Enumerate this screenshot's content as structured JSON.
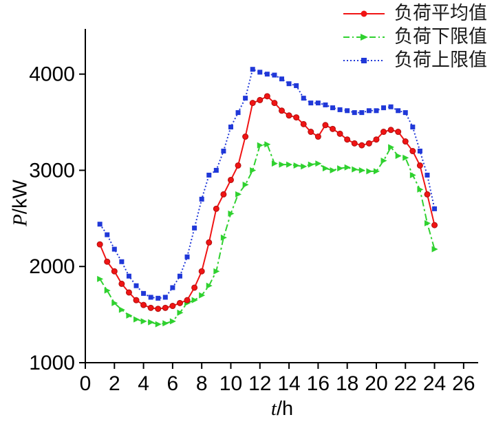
{
  "axis_labels": {
    "y_var": "P",
    "y_unit": "/kW",
    "x_var": "t",
    "x_unit": "/h"
  },
  "chart_data": {
    "type": "line",
    "title": "",
    "xlabel": "t/h",
    "ylabel": "P/kW",
    "xlim": [
      0,
      27
    ],
    "ylim": [
      1000,
      4470
    ],
    "xticks": [
      0,
      2,
      4,
      6,
      8,
      10,
      12,
      14,
      16,
      18,
      20,
      22,
      24,
      26
    ],
    "yticks": [
      1000,
      2000,
      3000,
      4000
    ],
    "grid": false,
    "legend_position": "top-right",
    "x": [
      1,
      1.5,
      2,
      2.5,
      3,
      3.5,
      4,
      4.5,
      5,
      5.5,
      6,
      6.5,
      7,
      7.5,
      8,
      8.5,
      9,
      9.5,
      10,
      10.5,
      11,
      11.5,
      12,
      12.5,
      13,
      13.5,
      14,
      14.5,
      15,
      15.5,
      16,
      16.5,
      17,
      17.5,
      18,
      18.5,
      19,
      19.5,
      20,
      20.5,
      21,
      21.5,
      22,
      22.5,
      23,
      23.5,
      24
    ],
    "series": [
      {
        "name": "负荷平均值",
        "color": "#f01414",
        "line_style": "solid",
        "marker": "circle",
        "values": [
          2230,
          2050,
          1950,
          1820,
          1730,
          1650,
          1600,
          1570,
          1560,
          1570,
          1590,
          1620,
          1650,
          1780,
          1950,
          2250,
          2600,
          2750,
          2900,
          3050,
          3350,
          3700,
          3730,
          3770,
          3700,
          3620,
          3570,
          3550,
          3480,
          3400,
          3350,
          3470,
          3430,
          3380,
          3320,
          3280,
          3260,
          3280,
          3320,
          3400,
          3420,
          3400,
          3300,
          3200,
          3050,
          2750,
          2430
        ]
      },
      {
        "name": "负荷下限值",
        "color": "#2fd12f",
        "line_style": "dashdot",
        "marker": "triangle-right",
        "values": [
          1870,
          1750,
          1620,
          1550,
          1490,
          1450,
          1430,
          1420,
          1400,
          1410,
          1430,
          1520,
          1620,
          1650,
          1700,
          1800,
          1950,
          2300,
          2550,
          2750,
          2850,
          3000,
          3260,
          3270,
          3070,
          3060,
          3060,
          3050,
          3040,
          3060,
          3070,
          3020,
          3000,
          3020,
          3030,
          3010,
          3000,
          2990,
          2990,
          3100,
          3240,
          3150,
          3130,
          2950,
          2800,
          2450,
          2180
        ]
      },
      {
        "name": "负荷上限值",
        "color": "#2038d8",
        "line_style": "dotted",
        "marker": "square",
        "values": [
          2440,
          2330,
          2180,
          2050,
          1900,
          1800,
          1720,
          1680,
          1670,
          1680,
          1780,
          1900,
          2100,
          2400,
          2700,
          2950,
          3000,
          3200,
          3450,
          3600,
          3750,
          4050,
          4020,
          4000,
          3990,
          3950,
          3900,
          3880,
          3750,
          3700,
          3700,
          3680,
          3650,
          3630,
          3620,
          3600,
          3600,
          3620,
          3620,
          3650,
          3660,
          3620,
          3600,
          3450,
          3200,
          2950,
          2600
        ]
      }
    ]
  }
}
